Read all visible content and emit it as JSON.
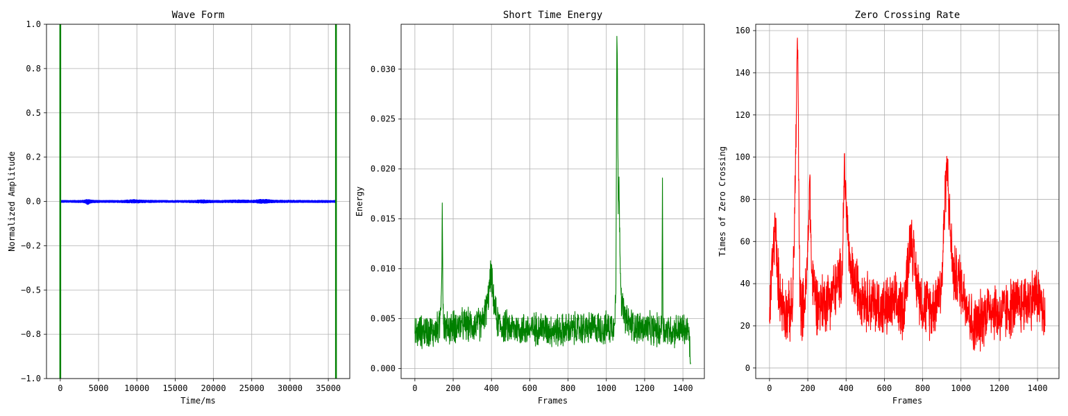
{
  "colors": {
    "waveform": "#0000ff",
    "boundary": "#008000",
    "energy": "#008000",
    "zcr": "#ff0000",
    "grid": "#b0b0b0"
  },
  "chart_data": [
    {
      "type": "line",
      "title": "Wave Form",
      "xlabel": "Time/ms",
      "ylabel": "Normalized Amplitude",
      "xlim": [
        -1800,
        37800
      ],
      "ylim": [
        -1.0,
        1.0
      ],
      "grid": true,
      "xticks": [
        0,
        5000,
        10000,
        15000,
        20000,
        25000,
        30000,
        35000
      ],
      "xtick_labels": [
        "0",
        "5000",
        "10000",
        "15000",
        "20000",
        "25000",
        "30000",
        "35000"
      ],
      "yticks": [
        -1.0,
        -0.75,
        -0.5,
        -0.25,
        0.0,
        0.25,
        0.5,
        0.75,
        1.0
      ],
      "ytick_labels": [
        "−1.0",
        "−0.8",
        "−0.5",
        "−0.2",
        "0.0",
        "0.2",
        "0.5",
        "0.8",
        "1.0"
      ],
      "series": [
        {
          "kind": "envelope",
          "color": "#0000ff",
          "x": [
            0,
            1500,
            3000,
            3600,
            4200,
            6000,
            8000,
            9700,
            11000,
            13000,
            15000,
            17000,
            18700,
            20000,
            22000,
            23500,
            25000,
            26500,
            28000,
            30000,
            32000,
            34000,
            36000
          ],
          "upper": [
            0.008,
            0.008,
            0.009,
            0.015,
            0.009,
            0.008,
            0.008,
            0.013,
            0.009,
            0.008,
            0.008,
            0.008,
            0.011,
            0.008,
            0.009,
            0.011,
            0.009,
            0.015,
            0.009,
            0.009,
            0.008,
            0.008,
            0.008
          ],
          "lower": [
            -0.008,
            -0.008,
            -0.009,
            -0.02,
            -0.009,
            -0.008,
            -0.009,
            -0.012,
            -0.009,
            -0.008,
            -0.008,
            -0.009,
            -0.012,
            -0.009,
            -0.009,
            -0.01,
            -0.009,
            -0.014,
            -0.009,
            -0.009,
            -0.008,
            -0.009,
            -0.008
          ]
        }
      ],
      "vlines": [
        {
          "x": 0,
          "color": "#008000"
        },
        {
          "x": 36000,
          "color": "#008000"
        }
      ]
    },
    {
      "type": "line",
      "title": "Short Time Energy",
      "xlabel": "Frames",
      "ylabel": "Energy",
      "xlim": [
        -72,
        1512
      ],
      "ylim": [
        -0.001,
        0.0345
      ],
      "grid": true,
      "xticks": [
        0,
        200,
        400,
        600,
        800,
        1000,
        1200,
        1400
      ],
      "xtick_labels": [
        "0",
        "200",
        "400",
        "600",
        "800",
        "1000",
        "1200",
        "1400"
      ],
      "yticks": [
        0.0,
        0.005,
        0.01,
        0.015,
        0.02,
        0.025,
        0.03
      ],
      "ytick_labels": [
        "0.000",
        "0.005",
        "0.010",
        "0.015",
        "0.020",
        "0.025",
        "0.030"
      ],
      "series": [
        {
          "kind": "noisy",
          "color": "#008000",
          "x": [
            0,
            50,
            100,
            130,
            140,
            143,
            146,
            150,
            160,
            200,
            250,
            300,
            350,
            380,
            390,
            398,
            410,
            430,
            450,
            500,
            550,
            600,
            650,
            700,
            750,
            800,
            850,
            900,
            950,
            1000,
            1040,
            1050,
            1055,
            1058,
            1062,
            1066,
            1072,
            1080,
            1100,
            1150,
            1200,
            1250,
            1280,
            1290,
            1293,
            1296,
            1300,
            1350,
            1400,
            1430,
            1440
          ],
          "y": [
            0.0035,
            0.0038,
            0.0037,
            0.0042,
            0.009,
            0.0166,
            0.008,
            0.0045,
            0.004,
            0.0042,
            0.0044,
            0.0043,
            0.0045,
            0.0065,
            0.0082,
            0.0098,
            0.0068,
            0.0048,
            0.0043,
            0.0041,
            0.004,
            0.0039,
            0.0041,
            0.0039,
            0.0038,
            0.0039,
            0.004,
            0.004,
            0.0041,
            0.004,
            0.0045,
            0.0075,
            0.0333,
            0.03,
            0.0155,
            0.0192,
            0.011,
            0.0065,
            0.0048,
            0.0042,
            0.004,
            0.0039,
            0.0038,
            0.0045,
            0.0191,
            0.0045,
            0.0039,
            0.0038,
            0.0039,
            0.0036,
            0.0006
          ],
          "spread": 0.0014
        }
      ]
    },
    {
      "type": "line",
      "title": "Zero Crossing Rate",
      "xlabel": "Frames",
      "ylabel": "Times of Zero Crossing",
      "xlim": [
        -72,
        1512
      ],
      "ylim": [
        -5,
        163
      ],
      "grid": true,
      "xticks": [
        0,
        200,
        400,
        600,
        800,
        1000,
        1200,
        1400
      ],
      "xtick_labels": [
        "0",
        "200",
        "400",
        "600",
        "800",
        "1000",
        "1200",
        "1400"
      ],
      "yticks": [
        0,
        20,
        40,
        60,
        80,
        100,
        120,
        140,
        160
      ],
      "ytick_labels": [
        "0",
        "20",
        "40",
        "60",
        "80",
        "100",
        "120",
        "140",
        "160"
      ],
      "series": [
        {
          "kind": "noisy",
          "color": "#ff0000",
          "x": [
            0,
            10,
            20,
            30,
            40,
            60,
            80,
            100,
            120,
            130,
            140,
            145,
            150,
            155,
            160,
            175,
            190,
            200,
            210,
            220,
            250,
            300,
            350,
            380,
            390,
            400,
            420,
            450,
            500,
            550,
            600,
            650,
            700,
            740,
            760,
            800,
            850,
            900,
            920,
            930,
            940,
            960,
            1000,
            1050,
            1060,
            1100,
            1150,
            1200,
            1250,
            1300,
            1350,
            1400,
            1420,
            1440
          ],
          "y": [
            22,
            45,
            55,
            70,
            45,
            33,
            27,
            26,
            28,
            65,
            120,
            155,
            130,
            60,
            30,
            28,
            35,
            55,
            90,
            45,
            30,
            32,
            38,
            45,
            95,
            80,
            45,
            40,
            33,
            30,
            28,
            30,
            28,
            65,
            45,
            30,
            28,
            40,
            88,
            97,
            70,
            45,
            40,
            25,
            18,
            22,
            30,
            25,
            28,
            30,
            32,
            35,
            30,
            20
          ],
          "spread": 12
        }
      ]
    }
  ]
}
